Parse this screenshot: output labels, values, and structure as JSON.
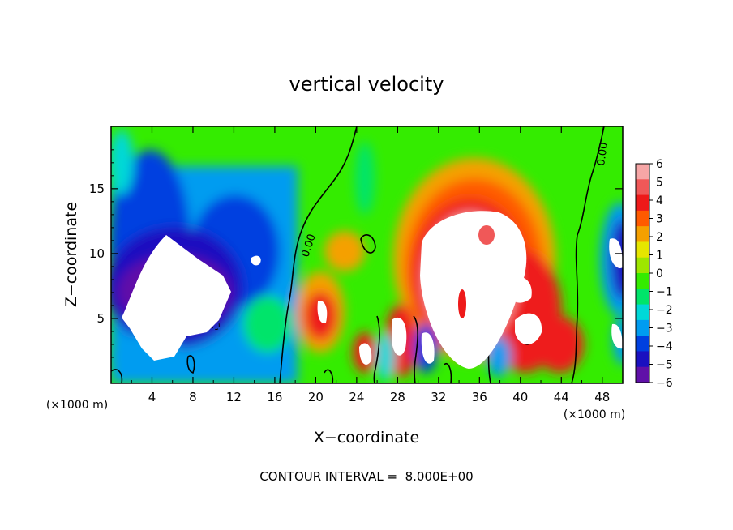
{
  "chart_data": {
    "type": "heatmap",
    "title": "vertical velocity",
    "xlabel": "X−coordinate",
    "ylabel": "Z−coordinate",
    "x_unit": "(×1000 m)",
    "xlim": [
      0,
      50
    ],
    "ylim": [
      0,
      19.8
    ],
    "x_ticks": [
      4,
      8,
      12,
      16,
      20,
      24,
      28,
      32,
      36,
      40,
      44,
      48
    ],
    "y_ticks": [
      5,
      10,
      15
    ],
    "colorbar": {
      "levels": [
        6,
        5,
        4,
        3,
        2,
        1,
        0,
        -1,
        -2,
        -3,
        -4,
        -5,
        -6
      ],
      "labels": [
        "6",
        "5",
        "4",
        "3",
        "2",
        "1",
        "0",
        "−1",
        "−2",
        "−3",
        "−4",
        "−5",
        "−6"
      ],
      "colors": [
        "#f6a6a6",
        "#f05858",
        "#ee1a1a",
        "#ff5a00",
        "#f5a000",
        "#e6e600",
        "#9ee600",
        "#34ec00",
        "#00e46a",
        "#00d8d8",
        "#009cf0",
        "#0040e0",
        "#1a10c0",
        "#6010a8"
      ]
    },
    "contour_label": "0.00",
    "contour_interval_text": "CONTOUR INTERVAL =  8.000E+00",
    "features": [
      {
        "kind": "downdraft",
        "x": 5,
        "z": 12,
        "value": -6
      },
      {
        "kind": "downdraft",
        "x": 6,
        "z": 7,
        "value": -6
      },
      {
        "kind": "downdraft",
        "x": 49,
        "z": 10,
        "value": -6
      },
      {
        "kind": "updraft",
        "x": 33,
        "z": 9,
        "value": 6
      },
      {
        "kind": "updraft",
        "x": 21,
        "z": 5,
        "value": 4
      },
      {
        "kind": "updraft",
        "x": 41,
        "z": 6,
        "value": 6
      }
    ]
  }
}
